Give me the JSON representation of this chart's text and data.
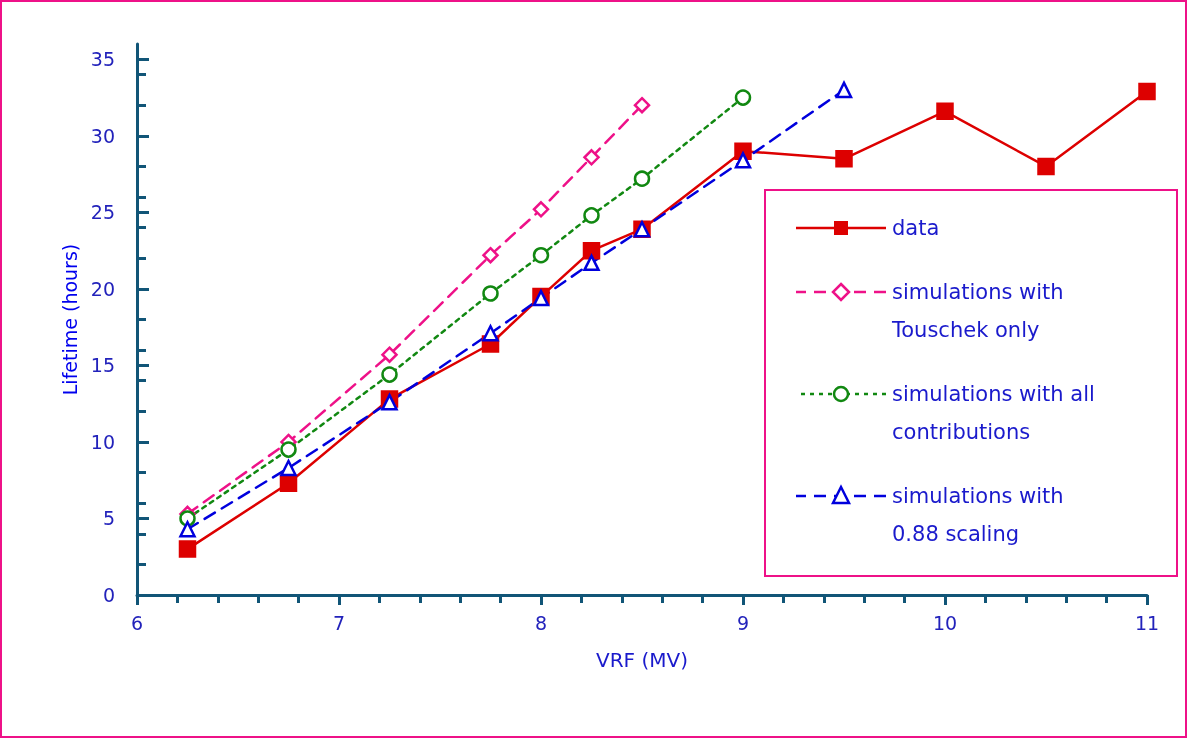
{
  "chart_data": {
    "type": "line",
    "xlabel": "VRF (MV)",
    "ylabel": "Lifetime (hours)",
    "xlim": [
      6,
      11
    ],
    "xticks": [
      6,
      7,
      8,
      9,
      10,
      11
    ],
    "ylim": [
      0,
      36
    ],
    "yticks": [
      0,
      5,
      10,
      15,
      20,
      25,
      30,
      35
    ],
    "grid": false,
    "legend": "right",
    "series": [
      {
        "name": "data",
        "color": "#dd0000",
        "marker": "square",
        "line_style": "solid",
        "x": [
          6.25,
          6.75,
          7.25,
          7.75,
          8,
          8.25,
          8.5,
          9,
          9.5,
          10,
          10.5,
          11
        ],
        "values": [
          3.0,
          7.3,
          12.8,
          16.4,
          19.5,
          22.5,
          23.9,
          29.0,
          28.5,
          31.6,
          28.0,
          32.9
        ]
      },
      {
        "name": "simulations with Touschek only",
        "color": "#ee1188",
        "marker": "diamond",
        "line_style": "dashed",
        "x": [
          6.25,
          6.75,
          7.25,
          7.75,
          8,
          8.25,
          8.5
        ],
        "values": [
          5.3,
          10.0,
          15.7,
          22.2,
          25.2,
          28.6,
          32.0
        ]
      },
      {
        "name": "simulations with all contributions",
        "color": "#118811",
        "marker": "circle",
        "line_style": "dotted",
        "x": [
          6.25,
          6.75,
          7.25,
          7.75,
          8,
          8.25,
          8.5,
          9
        ],
        "values": [
          5.0,
          9.5,
          14.4,
          19.7,
          22.2,
          24.8,
          27.2,
          32.5
        ]
      },
      {
        "name": "simulations with 0.88 scaling",
        "color": "#0000dd",
        "marker": "triangle",
        "line_style": "dashed",
        "x": [
          6.25,
          6.75,
          7.25,
          7.75,
          8,
          8.25,
          8.5,
          9,
          9.5
        ],
        "values": [
          4.3,
          8.3,
          12.6,
          17.1,
          19.4,
          21.7,
          23.9,
          28.4,
          33.0
        ]
      }
    ]
  }
}
